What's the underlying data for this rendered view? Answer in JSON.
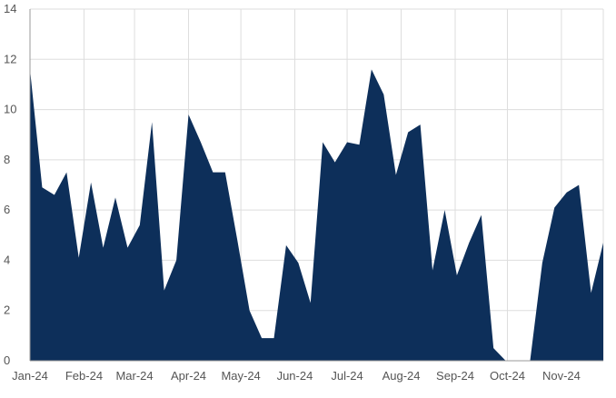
{
  "chart_data": {
    "type": "area",
    "title": "",
    "xlabel": "",
    "ylabel": "",
    "ylim": [
      0,
      14
    ],
    "y_ticks": [
      0,
      2,
      4,
      6,
      8,
      10,
      12,
      14
    ],
    "grid": true,
    "legend": "none",
    "colors": {
      "fill": "#0d2f5a",
      "grid": "#dddddd",
      "axis": "#999999",
      "label": "#555555"
    },
    "x_tick_labels": [
      {
        "label": "Jan-24",
        "x": 0
      },
      {
        "label": "Feb-24",
        "x": 4.43
      },
      {
        "label": "Mar-24",
        "x": 8.57
      },
      {
        "label": "Apr-24",
        "x": 13
      },
      {
        "label": "May-24",
        "x": 17.29
      },
      {
        "label": "Jun-24",
        "x": 21.71
      },
      {
        "label": "Jul-24",
        "x": 26
      },
      {
        "label": "Aug-24",
        "x": 30.43
      },
      {
        "label": "Sep-24",
        "x": 34.86
      },
      {
        "label": "Oct-24",
        "x": 39.14
      },
      {
        "label": "Nov-24",
        "x": 43.57
      }
    ],
    "series": [
      {
        "values": [
          11.6,
          6.9,
          6.6,
          7.5,
          4.1,
          7.1,
          4.5,
          6.5,
          4.5,
          5.4,
          9.5,
          2.8,
          4.0,
          9.8,
          8.7,
          7.5,
          7.5,
          4.8,
          2.0,
          0.9,
          0.9,
          4.6,
          3.9,
          2.3,
          8.7,
          7.9,
          8.7,
          8.6,
          11.6,
          10.6,
          7.4,
          9.1,
          9.4,
          3.6,
          6.0,
          3.4,
          4.7,
          5.8,
          0.5,
          0.0,
          0.0,
          0.0,
          3.9,
          6.1,
          6.7,
          7.0,
          2.7,
          4.7
        ],
        "gaps": [
          40
        ]
      }
    ]
  }
}
